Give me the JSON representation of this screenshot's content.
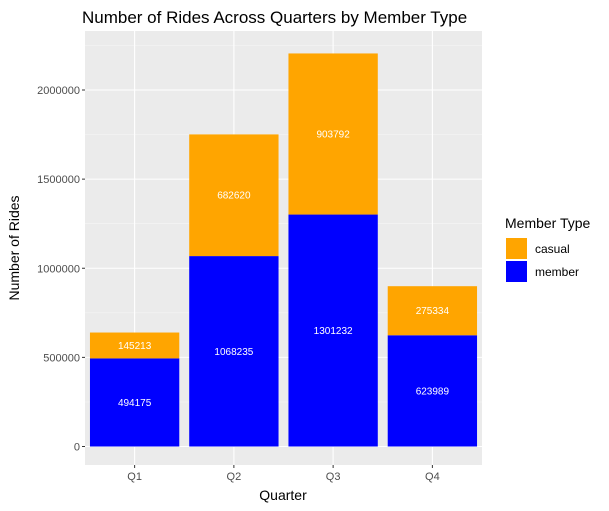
{
  "chart_data": {
    "type": "bar",
    "stacked": true,
    "title": "Number of Rides Across Quarters by Member Type",
    "xlabel": "Quarter",
    "ylabel": "Number of Rides",
    "categories": [
      "Q1",
      "Q2",
      "Q3",
      "Q4"
    ],
    "series": [
      {
        "name": "member",
        "color": "#0000FF",
        "values": [
          494175,
          1068235,
          1301232,
          623989
        ]
      },
      {
        "name": "casual",
        "color": "#FFA500",
        "values": [
          145213,
          682620,
          903792,
          275334
        ]
      }
    ],
    "ylim": [
      0,
      2300000
    ],
    "yticks": [
      0,
      500000,
      1000000,
      1500000,
      2000000
    ],
    "ytick_labels": [
      "0",
      "500000",
      "1000000",
      "1500000",
      "2000000"
    ],
    "grid": true,
    "panel_background": "#EBEBEB",
    "legend": {
      "title": "Member Type",
      "position": "right",
      "entries": [
        {
          "label": "casual",
          "color": "#FFA500"
        },
        {
          "label": "member",
          "color": "#0000FF"
        }
      ]
    }
  }
}
